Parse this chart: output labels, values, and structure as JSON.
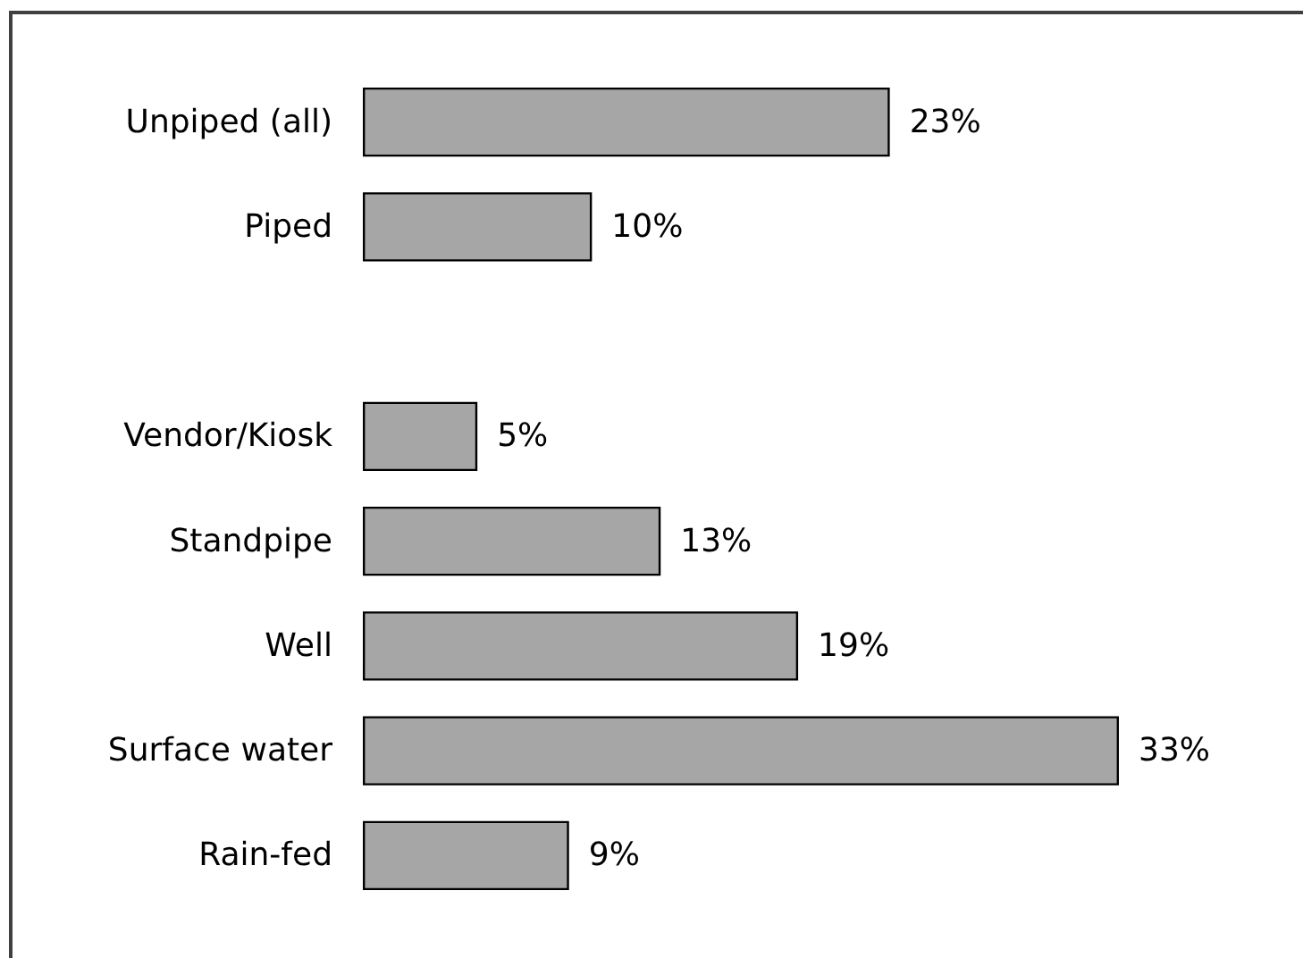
{
  "chart_data": {
    "type": "bar",
    "orientation": "horizontal",
    "categories": [
      "Unpiped (all)",
      "Piped",
      null,
      "Vendor/Kiosk",
      "Standpipe",
      "Well",
      "Surface water",
      "Rain-fed"
    ],
    "values": [
      23,
      10,
      null,
      5,
      13,
      19,
      33,
      9
    ],
    "value_labels": [
      "23%",
      "10%",
      null,
      "5%",
      "13%",
      "19%",
      "33%",
      "9%"
    ],
    "color": "#a6a6a6"
  }
}
